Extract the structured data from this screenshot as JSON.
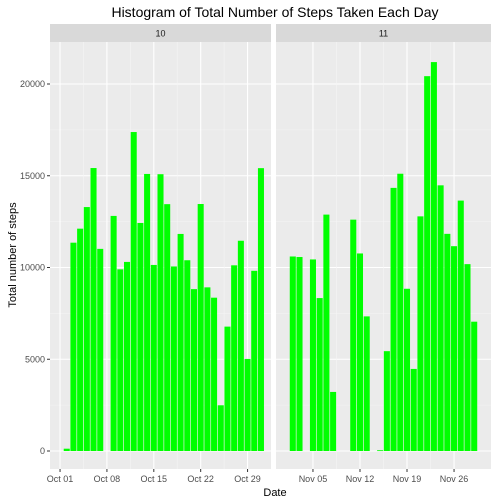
{
  "chart_data": {
    "type": "bar",
    "title": "Histogram of Total Number of Steps Taken Each Day",
    "xlabel": "Date",
    "ylabel": "Total number of steps",
    "ylim": [
      0,
      22000
    ],
    "y_ticks": [
      0,
      5000,
      10000,
      15000,
      20000
    ],
    "y_tick_labels": [
      "0",
      "5000",
      "10000",
      "15000",
      "20000"
    ],
    "bar_color": "#00ff00",
    "panel_background": "#ebebeb",
    "strip_background": "#d9d9d9",
    "grid": true,
    "panels": [
      {
        "strip": "10",
        "x_start": "2012-10-01",
        "x_end": "2012-10-31",
        "x_ticks": [
          "Oct 01",
          "Oct 08",
          "Oct 15",
          "Oct 22",
          "Oct 29"
        ],
        "x": [
          "2012-10-01",
          "2012-10-02",
          "2012-10-03",
          "2012-10-04",
          "2012-10-05",
          "2012-10-06",
          "2012-10-07",
          "2012-10-08",
          "2012-10-09",
          "2012-10-10",
          "2012-10-11",
          "2012-10-12",
          "2012-10-13",
          "2012-10-14",
          "2012-10-15",
          "2012-10-16",
          "2012-10-17",
          "2012-10-18",
          "2012-10-19",
          "2012-10-20",
          "2012-10-21",
          "2012-10-22",
          "2012-10-23",
          "2012-10-24",
          "2012-10-25",
          "2012-10-26",
          "2012-10-27",
          "2012-10-28",
          "2012-10-29",
          "2012-10-30",
          "2012-10-31"
        ],
        "values": [
          0,
          126,
          11352,
          12116,
          13294,
          15420,
          11015,
          0,
          12811,
          9900,
          10304,
          17382,
          12426,
          15098,
          10139,
          15084,
          13452,
          10056,
          11829,
          10395,
          8821,
          13460,
          8918,
          8355,
          2492,
          6778,
          10119,
          11458,
          5018,
          9819,
          15414
        ]
      },
      {
        "strip": "11",
        "x_start": "2012-11-01",
        "x_end": "2012-11-30",
        "x_ticks": [
          "Nov 05",
          "Nov 12",
          "Nov 19",
          "Nov 26"
        ],
        "x": [
          "2012-11-01",
          "2012-11-02",
          "2012-11-03",
          "2012-11-04",
          "2012-11-05",
          "2012-11-06",
          "2012-11-07",
          "2012-11-08",
          "2012-11-09",
          "2012-11-10",
          "2012-11-11",
          "2012-11-12",
          "2012-11-13",
          "2012-11-14",
          "2012-11-15",
          "2012-11-16",
          "2012-11-17",
          "2012-11-18",
          "2012-11-19",
          "2012-11-20",
          "2012-11-21",
          "2012-11-22",
          "2012-11-23",
          "2012-11-24",
          "2012-11-25",
          "2012-11-26",
          "2012-11-27",
          "2012-11-28",
          "2012-11-29",
          "2012-11-30"
        ],
        "values": [
          0,
          10600,
          10571,
          0,
          10439,
          8334,
          12883,
          3219,
          0,
          0,
          12608,
          10765,
          7336,
          0,
          41,
          5441,
          14339,
          15110,
          8841,
          4472,
          12787,
          20427,
          21194,
          14478,
          11834,
          11162,
          13646,
          10183,
          7047,
          0
        ]
      }
    ]
  }
}
